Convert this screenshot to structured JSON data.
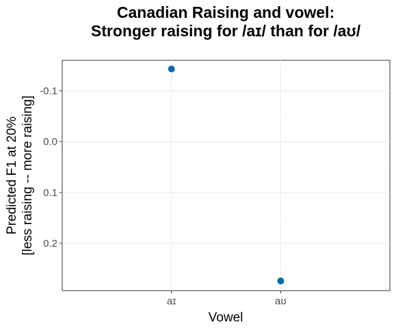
{
  "chart_data": {
    "type": "scatter",
    "title": [
      "Canadian Raising and vowel:",
      "Stronger raising for /aɪ/ than for /aʊ/"
    ],
    "xlabel": "Vowel",
    "ylabel": [
      "Predicted F1 at 20%",
      "[less raising -- more raising]"
    ],
    "categories": [
      "aɪ",
      "aʊ"
    ],
    "values": [
      -0.143,
      0.274
    ],
    "y_reversed": true,
    "ylim": [
      -0.16,
      0.293
    ],
    "yticks": [
      -0.1,
      0.0,
      0.1,
      0.2
    ],
    "ytick_labels": [
      "-0.1",
      "0.0",
      "0.1",
      "0.2"
    ],
    "point_color": "#0a6aa8",
    "grid": true,
    "legend": "none"
  }
}
